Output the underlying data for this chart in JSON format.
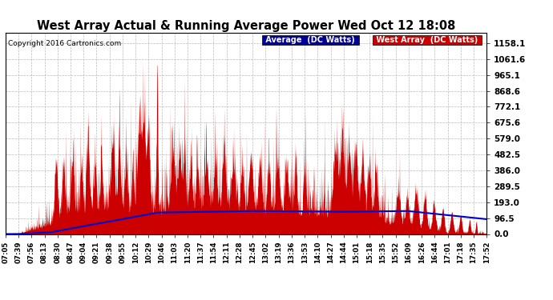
{
  "title": "West Array Actual & Running Average Power Wed Oct 12 18:08",
  "copyright": "Copyright 2016 Cartronics.com",
  "legend_avg": "Average  (DC Watts)",
  "legend_west": "West Array  (DC Watts)",
  "y_ticks": [
    0.0,
    96.5,
    193.0,
    289.5,
    386.0,
    482.5,
    579.0,
    675.6,
    772.1,
    868.6,
    965.1,
    1061.6,
    1158.1
  ],
  "ylim_max": 1220,
  "background_color": "#ffffff",
  "grid_color": "#bbbbbb",
  "red_color": "#cc0000",
  "blue_color": "#0000cc",
  "title_color": "#000000",
  "legend_avg_bg": "#000099",
  "legend_west_bg": "#cc0000",
  "x_labels": [
    "07:05",
    "07:39",
    "07:56",
    "08:13",
    "08:30",
    "08:47",
    "09:04",
    "09:21",
    "09:38",
    "09:55",
    "10:12",
    "10:29",
    "10:46",
    "11:03",
    "11:20",
    "11:37",
    "11:54",
    "12:11",
    "12:28",
    "12:45",
    "13:02",
    "13:19",
    "13:36",
    "13:53",
    "14:10",
    "14:27",
    "14:44",
    "15:01",
    "15:18",
    "15:35",
    "15:52",
    "16:09",
    "16:26",
    "16:44",
    "17:01",
    "17:18",
    "17:35",
    "17:52"
  ]
}
